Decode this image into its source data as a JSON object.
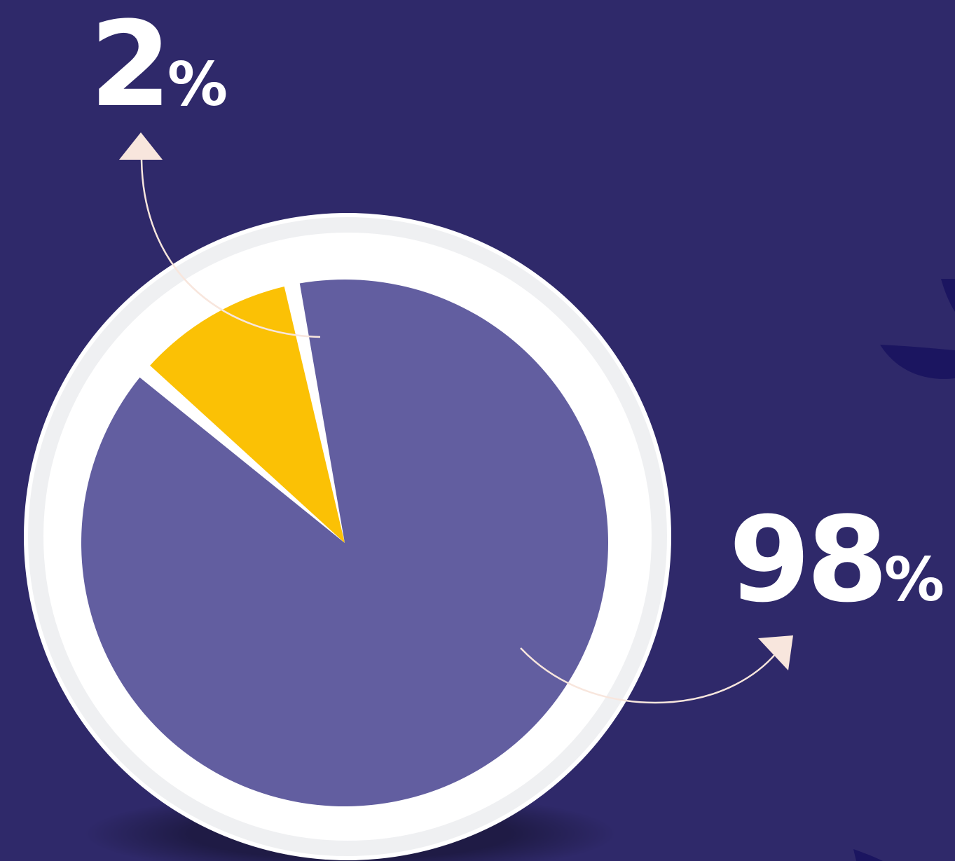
{
  "colors": {
    "background": "#2f296a",
    "ring": "#ffffff",
    "ring_shade": "#e2e3e8",
    "major_slice": "#625ea0",
    "minor_slice": "#fbc105",
    "arrow": "#f8e6dd",
    "leaf": "#1b1560"
  },
  "chart_data": {
    "type": "pie",
    "title": "",
    "slices": [
      {
        "value": 2,
        "color": "#fbc105"
      },
      {
        "value": 98,
        "color": "#625ea0"
      }
    ],
    "labels": [
      {
        "number": "2",
        "suffix": "%"
      },
      {
        "number": "98",
        "suffix": "%"
      }
    ],
    "legend": "none"
  }
}
